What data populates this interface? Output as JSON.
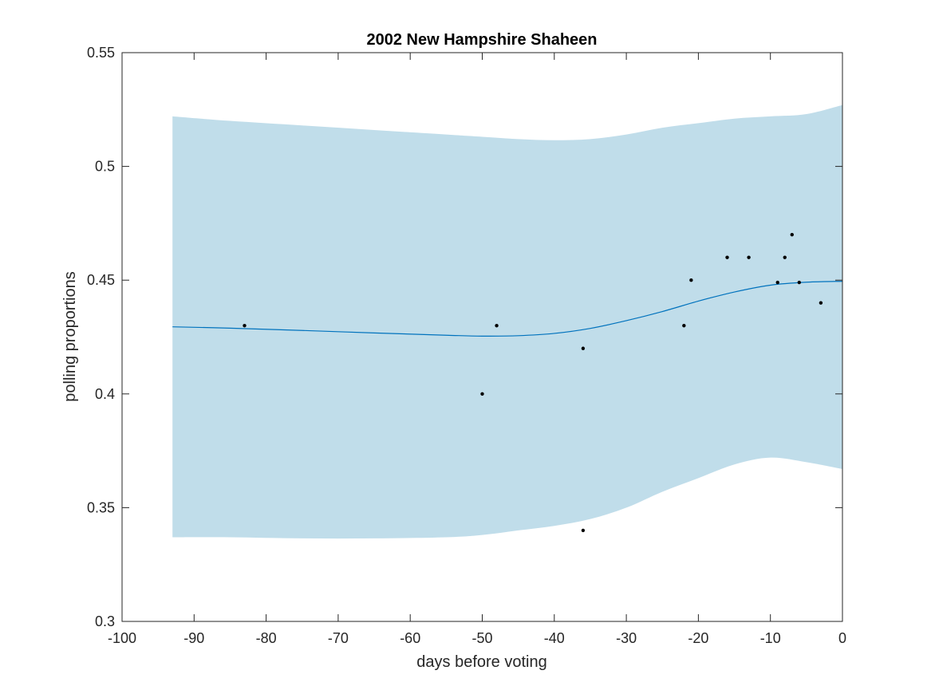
{
  "chart_data": {
    "type": "line",
    "title": "2002 New Hampshire Shaheen",
    "xlabel": "days before voting",
    "ylabel": "polling proportions",
    "xlim": [
      -100,
      0
    ],
    "ylim": [
      0.3,
      0.55
    ],
    "xticks": [
      -100,
      -90,
      -80,
      -70,
      -60,
      -50,
      -40,
      -30,
      -20,
      -10,
      0
    ],
    "xtick_labels": [
      "-100",
      "-90",
      "-80",
      "-70",
      "-60",
      "-50",
      "-40",
      "-30",
      "-20",
      "-10",
      "0"
    ],
    "yticks": [
      0.3,
      0.35,
      0.4,
      0.45,
      0.5,
      0.55
    ],
    "ytick_labels": [
      "0.3",
      "0.35",
      "0.4",
      "0.45",
      "0.5",
      "0.55"
    ],
    "grid": false,
    "colors": {
      "band": "#c0ddea",
      "line": "#0072bd",
      "points": "#000000",
      "axes": "#262626"
    },
    "band": {
      "x": [
        -93,
        -85,
        -75,
        -65,
        -55,
        -50,
        -45,
        -40,
        -35,
        -30,
        -25,
        -20,
        -15,
        -10,
        -5,
        0
      ],
      "lower": [
        0.337,
        0.337,
        0.3365,
        0.3365,
        0.337,
        0.338,
        0.34,
        0.342,
        0.345,
        0.35,
        0.357,
        0.363,
        0.369,
        0.372,
        0.37,
        0.367
      ],
      "upper": [
        0.522,
        0.52,
        0.518,
        0.516,
        0.514,
        0.513,
        0.512,
        0.5115,
        0.512,
        0.514,
        0.517,
        0.519,
        0.521,
        0.522,
        0.523,
        0.527
      ]
    },
    "series": [
      {
        "type": "line",
        "x": [
          -93,
          -85,
          -75,
          -65,
          -55,
          -50,
          -45,
          -40,
          -35,
          -30,
          -25,
          -20,
          -15,
          -10,
          -5,
          0
        ],
        "y": [
          0.4295,
          0.4289,
          0.4279,
          0.4268,
          0.4258,
          0.4254,
          0.4256,
          0.4266,
          0.4288,
          0.4322,
          0.4362,
          0.4408,
          0.4448,
          0.4478,
          0.4491,
          0.4495
        ]
      },
      {
        "type": "scatter",
        "x": [
          -83,
          -50,
          -48,
          -36,
          -36,
          -22,
          -21,
          -16,
          -13,
          -9,
          -8,
          -7,
          -6,
          -3
        ],
        "y": [
          0.43,
          0.4,
          0.43,
          0.42,
          0.34,
          0.43,
          0.45,
          0.46,
          0.46,
          0.449,
          0.46,
          0.47,
          0.449,
          0.44
        ]
      }
    ]
  }
}
